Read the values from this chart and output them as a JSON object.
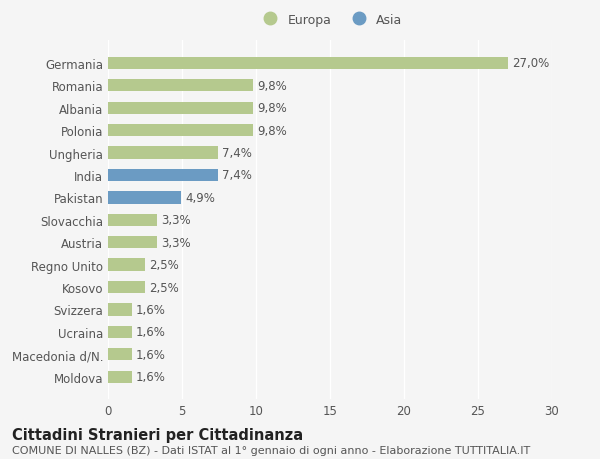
{
  "categories": [
    "Moldova",
    "Macedonia d/N.",
    "Ucraina",
    "Svizzera",
    "Kosovo",
    "Regno Unito",
    "Austria",
    "Slovacchia",
    "Pakistan",
    "India",
    "Ungheria",
    "Polonia",
    "Albania",
    "Romania",
    "Germania"
  ],
  "values": [
    1.6,
    1.6,
    1.6,
    1.6,
    2.5,
    2.5,
    3.3,
    3.3,
    4.9,
    7.4,
    7.4,
    9.8,
    9.8,
    9.8,
    27.0
  ],
  "bar_colors": [
    "#b5c98e",
    "#b5c98e",
    "#b5c98e",
    "#b5c98e",
    "#b5c98e",
    "#b5c98e",
    "#b5c98e",
    "#b5c98e",
    "#6b9bc3",
    "#6b9bc3",
    "#b5c98e",
    "#b5c98e",
    "#b5c98e",
    "#b5c98e",
    "#b5c98e"
  ],
  "labels": [
    "1,6%",
    "1,6%",
    "1,6%",
    "1,6%",
    "2,5%",
    "2,5%",
    "3,3%",
    "3,3%",
    "4,9%",
    "7,4%",
    "7,4%",
    "9,8%",
    "9,8%",
    "9,8%",
    "27,0%"
  ],
  "xlim": [
    0,
    30
  ],
  "xticks": [
    0,
    5,
    10,
    15,
    20,
    25,
    30
  ],
  "title": "Cittadini Stranieri per Cittadinanza",
  "subtitle": "COMUNE DI NALLES (BZ) - Dati ISTAT al 1° gennaio di ogni anno - Elaborazione TUTTITALIA.IT",
  "legend_europa_color": "#b5c98e",
  "legend_asia_color": "#6b9bc3",
  "background_color": "#f5f5f5",
  "bar_height": 0.55,
  "label_fontsize": 8.5,
  "tick_fontsize": 8.5,
  "title_fontsize": 10.5,
  "subtitle_fontsize": 8.0,
  "grid_color": "#ffffff",
  "text_color": "#555555"
}
